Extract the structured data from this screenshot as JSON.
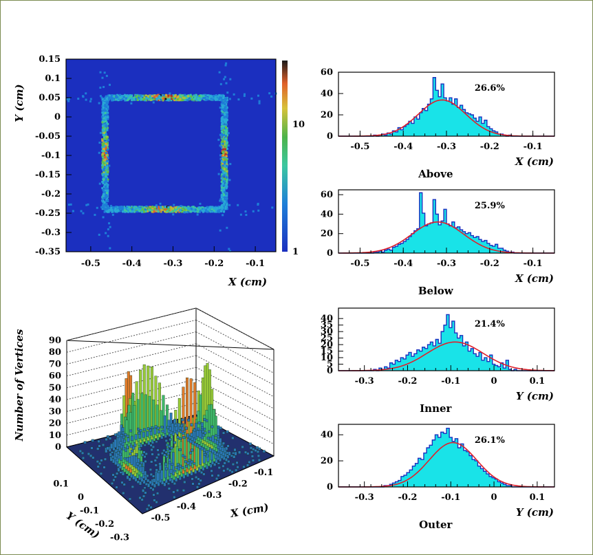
{
  "chart_data": [
    {
      "id": "map",
      "type": "heatmap",
      "xlabel": "X (cm)",
      "ylabel": "Y (cm)",
      "xlim": [
        -0.56,
        -0.05
      ],
      "ylim": [
        -0.35,
        0.15
      ],
      "xticks": [
        "-0.5",
        "-0.4",
        "-0.3",
        "-0.2",
        "-0.1"
      ],
      "yticks": [
        "0.15",
        "0.1",
        "0.05",
        "0",
        "-0.05",
        "-0.1",
        "-0.15",
        "-0.2",
        "-0.25",
        "-0.3",
        "-0.35"
      ],
      "colorbar_labels": [
        "10",
        "1"
      ],
      "scale": "log",
      "description_values": {
        "square_edges": {
          "x_min": -0.465,
          "x_max": -0.175,
          "y_min": -0.24,
          "y_max": 0.05
        }
      }
    },
    {
      "id": "lego",
      "type": "bar",
      "zlabel": "Number of Vertices",
      "xlabel": "X (cm)",
      "ylabel": "Y (cm)",
      "zticks": [
        "90",
        "80",
        "70",
        "60",
        "50",
        "40",
        "30",
        "20",
        "10",
        "0"
      ],
      "xticks": [
        "-0.5",
        "-0.4",
        "-0.3",
        "-0.2",
        "-0.1"
      ],
      "yticks": [
        "0.1",
        "0",
        "-0.1",
        "-0.2",
        "-0.3"
      ]
    },
    {
      "id": "above",
      "type": "bar",
      "title": "Above",
      "xlabel": "X (cm)",
      "annotation": "26.6%",
      "xlim": [
        -0.55,
        -0.05
      ],
      "ylim": [
        0,
        60
      ],
      "xticks": [
        "-0.5",
        "-0.4",
        "-0.3",
        "-0.2",
        "-0.1"
      ],
      "yticks": [
        "60",
        "40",
        "20",
        "0"
      ],
      "fit": {
        "mean": -0.31,
        "sigma": 0.055,
        "peak": 34
      },
      "hist": [
        0,
        0,
        0,
        0,
        0,
        0,
        0,
        0,
        0,
        0,
        0,
        0,
        0,
        1,
        0,
        1,
        2,
        1,
        3,
        2,
        5,
        4,
        8,
        6,
        9,
        11,
        14,
        12,
        18,
        16,
        22,
        26,
        24,
        30,
        35,
        55,
        43,
        37,
        49,
        36,
        33,
        36,
        30,
        35,
        27,
        29,
        25,
        22,
        21,
        20,
        17,
        14,
        18,
        12,
        15,
        9,
        7,
        5,
        4,
        2,
        2,
        1,
        0,
        1,
        0,
        0,
        0,
        0,
        0,
        0,
        0,
        0,
        0,
        0,
        0,
        0,
        0,
        0,
        0,
        0
      ]
    },
    {
      "id": "below",
      "type": "bar",
      "title": "Below",
      "xlabel": "X (cm)",
      "annotation": "25.9%",
      "xlim": [
        -0.55,
        -0.05
      ],
      "ylim": [
        0,
        65
      ],
      "xticks": [
        "-0.5",
        "-0.4",
        "-0.3",
        "-0.2",
        "-0.1"
      ],
      "yticks": [
        "60",
        "40",
        "20",
        "0"
      ],
      "fit": {
        "mean": -0.32,
        "sigma": 0.06,
        "peak": 32
      },
      "hist": [
        0,
        0,
        0,
        0,
        0,
        0,
        0,
        0,
        0,
        0,
        0,
        0,
        0,
        1,
        1,
        2,
        1,
        3,
        4,
        3,
        6,
        7,
        9,
        10,
        12,
        14,
        17,
        20,
        23,
        25,
        62,
        41,
        28,
        30,
        31,
        55,
        40,
        29,
        33,
        45,
        30,
        28,
        32,
        26,
        27,
        24,
        22,
        20,
        21,
        18,
        16,
        17,
        14,
        12,
        13,
        10,
        8,
        7,
        9,
        5,
        5,
        3,
        2,
        1,
        1,
        0,
        0,
        0,
        0,
        0,
        0,
        0,
        0,
        0,
        0,
        0,
        0,
        0,
        0,
        0
      ]
    },
    {
      "id": "inner",
      "type": "bar",
      "title": "Inner",
      "xlabel": "Y (cm)",
      "annotation": "21.4%",
      "xlim": [
        -0.36,
        0.14
      ],
      "ylim": [
        0,
        48
      ],
      "xticks": [
        "-0.3",
        "-0.2",
        "-0.1",
        "0",
        "0.1"
      ],
      "yticks": [
        "40",
        "35",
        "30",
        "25",
        "20",
        "15",
        "10",
        "5",
        "0"
      ],
      "fit": {
        "mean": -0.09,
        "sigma": 0.065,
        "peak": 22
      },
      "hist": [
        0,
        0,
        0,
        0,
        0,
        0,
        0,
        0,
        0,
        0,
        0,
        0,
        0,
        1,
        0,
        2,
        1,
        3,
        2,
        6,
        5,
        8,
        7,
        10,
        9,
        12,
        14,
        11,
        13,
        16,
        15,
        18,
        17,
        20,
        22,
        19,
        24,
        21,
        30,
        35,
        43,
        33,
        38,
        29,
        25,
        27,
        19,
        22,
        15,
        17,
        13,
        11,
        14,
        8,
        10,
        7,
        12,
        5,
        4,
        3,
        6,
        2,
        8,
        1,
        0,
        1,
        0,
        0,
        0,
        0,
        0,
        0,
        0,
        0,
        0,
        0,
        0,
        0,
        0,
        0
      ]
    },
    {
      "id": "outer",
      "type": "bar",
      "title": "Outer",
      "xlabel": "Y (cm)",
      "annotation": "26.1%",
      "xlim": [
        -0.36,
        0.14
      ],
      "ylim": [
        0,
        48
      ],
      "xticks": [
        "-0.3",
        "-0.2",
        "-0.1",
        "0",
        "0.1"
      ],
      "yticks": [
        "40",
        "20",
        "0"
      ],
      "fit": {
        "mean": -0.095,
        "sigma": 0.055,
        "peak": 34
      },
      "hist": [
        0,
        0,
        0,
        0,
        0,
        0,
        0,
        0,
        0,
        0,
        0,
        0,
        0,
        0,
        0,
        0,
        1,
        1,
        2,
        3,
        4,
        5,
        8,
        9,
        11,
        13,
        16,
        18,
        22,
        21,
        26,
        30,
        32,
        36,
        40,
        38,
        42,
        41,
        45,
        38,
        35,
        37,
        30,
        33,
        28,
        27,
        24,
        21,
        20,
        16,
        14,
        12,
        10,
        8,
        7,
        6,
        4,
        3,
        2,
        1,
        1,
        0,
        0,
        0,
        0,
        0,
        0,
        0,
        0,
        0,
        0,
        0,
        0,
        0,
        0,
        0
      ]
    }
  ]
}
